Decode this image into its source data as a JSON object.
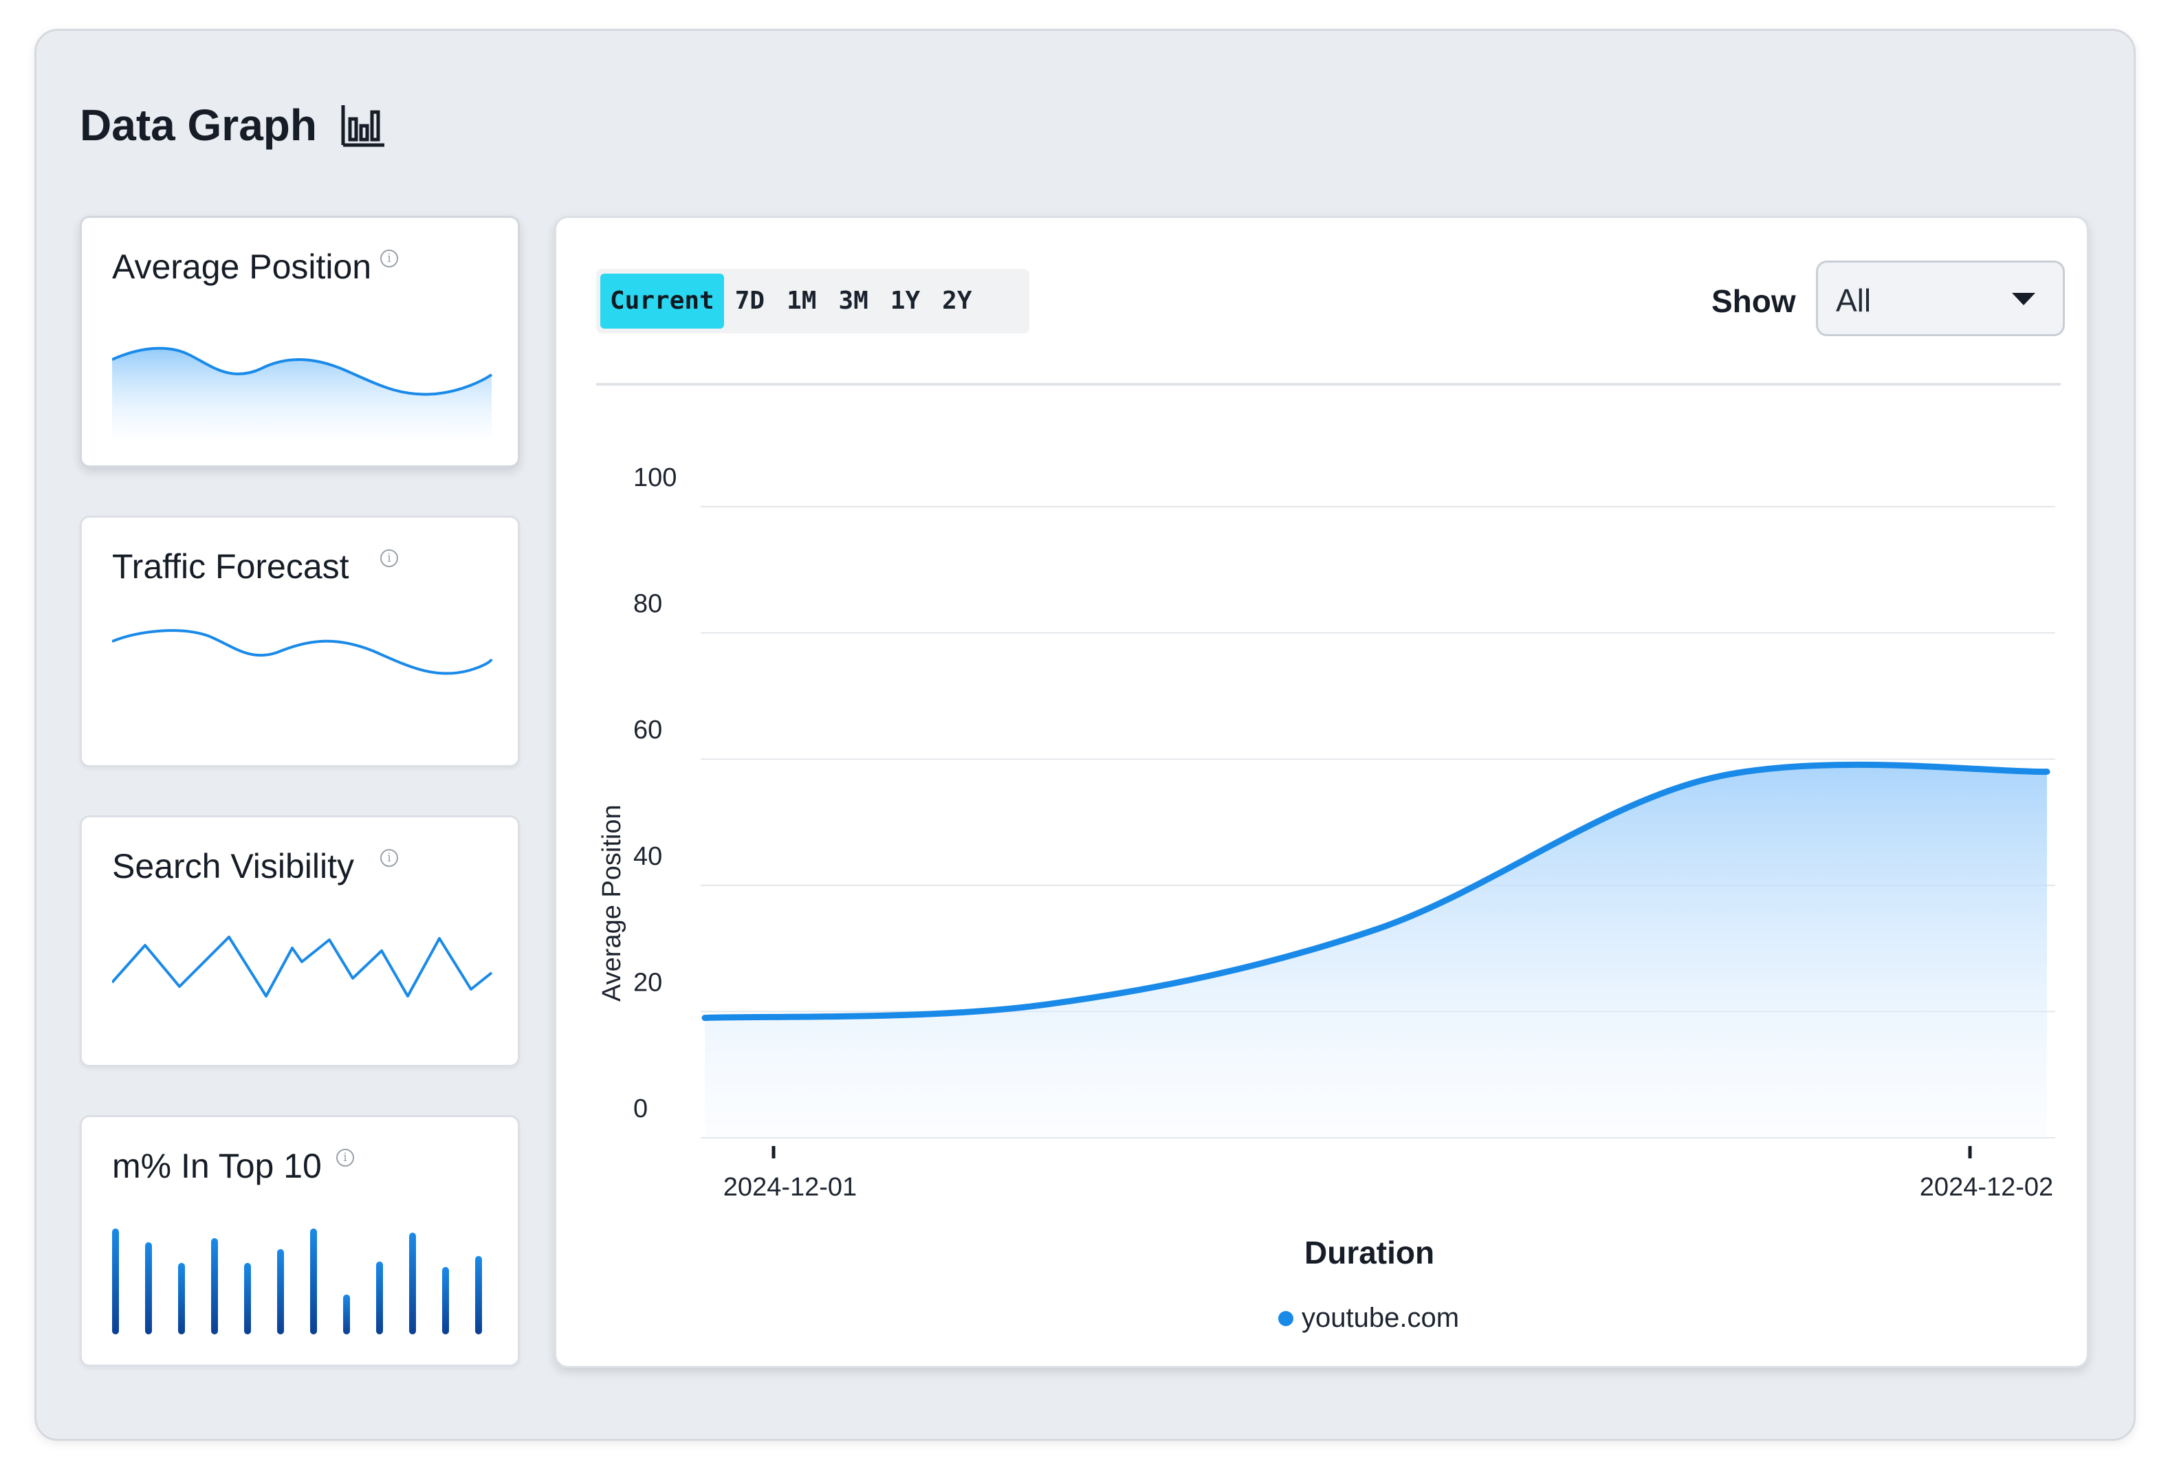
{
  "header": {
    "title": "Data Graph",
    "icon": "bar-chart-icon"
  },
  "metrics": [
    {
      "label": "Average Position",
      "info_icon": "info-icon",
      "sparkline": "area"
    },
    {
      "label": "Traffic Forecast",
      "info_icon": "info-icon",
      "sparkline": "line"
    },
    {
      "label": "Search Visibility",
      "info_icon": "info-icon",
      "sparkline": "zigzag"
    },
    {
      "label": "m% In Top 10",
      "info_icon": "info-icon",
      "sparkline": "bars"
    }
  ],
  "tabs": [
    "Current",
    "7D",
    "1M",
    "3M",
    "1Y",
    "2Y"
  ],
  "active_tab": "Current",
  "show": {
    "label": "Show",
    "value": "All"
  },
  "colors": {
    "accent": "#2ad7f1",
    "series": "#1a8ae8",
    "area_top": "#a7d3fb",
    "bar_dark": "#0b3f92"
  },
  "chart_data": {
    "type": "area",
    "title": "",
    "xlabel": "Duration",
    "ylabel": "Average Position",
    "yticks": [
      "0",
      "20",
      "40",
      "60",
      "80",
      "100"
    ],
    "ylim": [
      0,
      100
    ],
    "xlim": [
      "2024-12-01",
      "2024-12-02"
    ],
    "xticks": [
      "2024-12-01",
      "2024-12-02"
    ],
    "grid": true,
    "legend_position": "bottom",
    "series": [
      {
        "name": "youtube.com",
        "x": [
          "2024-12-01 00:00",
          "2024-12-01 06:00",
          "2024-12-01 12:00",
          "2024-12-01 18:00",
          "2024-12-02 00:00"
        ],
        "values": [
          19,
          21,
          33,
          57,
          58
        ]
      }
    ]
  }
}
